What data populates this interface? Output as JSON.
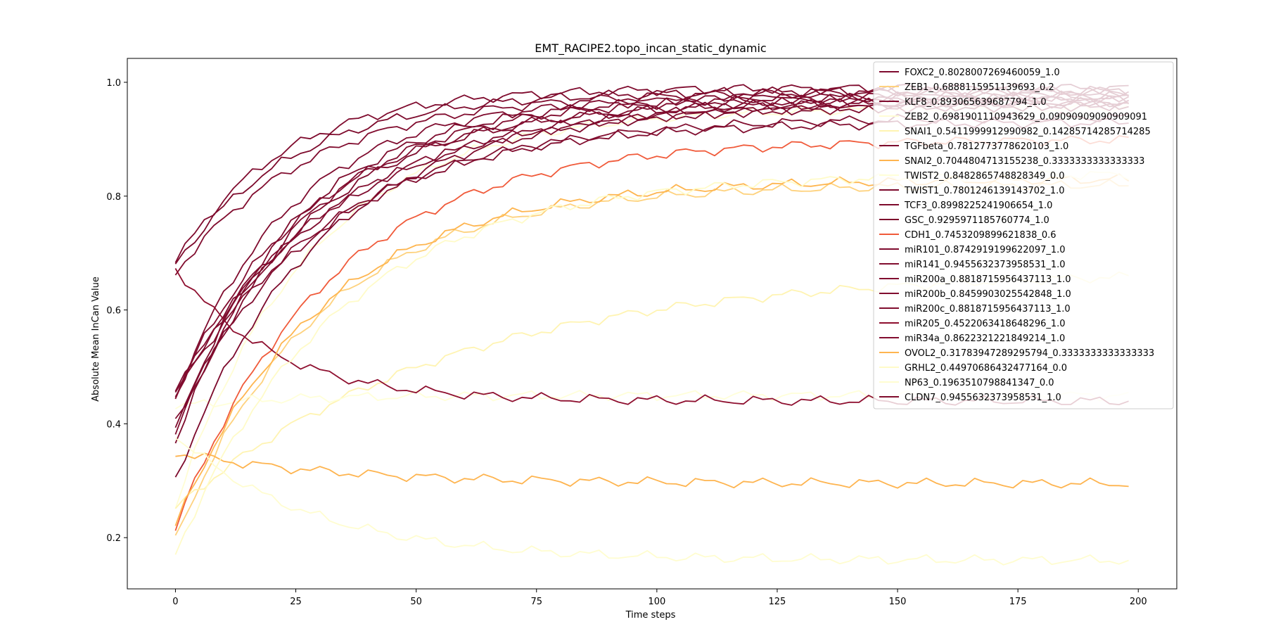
{
  "chart_data": {
    "type": "line",
    "title": "EMT_RACIPE2.topo_incan_static_dynamic",
    "xlabel": "Time steps",
    "ylabel": "Absolute Mean InCan Value",
    "xlim": [
      -10,
      208
    ],
    "ylim": [
      0.11,
      1.042
    ],
    "x_ticks": [
      0,
      25,
      50,
      75,
      100,
      125,
      150,
      175,
      200
    ],
    "y_ticks": [
      0.2,
      0.4,
      0.6,
      0.8,
      1.0
    ],
    "grid": false,
    "legend_position": "top-right",
    "x_range": [
      0,
      198
    ],
    "series": [
      {
        "name": "FOXC2_0.8028007269460059_1.0",
        "color": "#7f0b2e",
        "start": 0.683,
        "end": 0.99,
        "k": 0.045
      },
      {
        "name": "ZEB1_0.6888115951139693_0.2",
        "color": "#fed27e",
        "start": 0.195,
        "end": 0.82,
        "k": 0.034
      },
      {
        "name": "KLF8_0.893065639687794_1.0",
        "color": "#7f0b2e",
        "start": 0.445,
        "end": 0.975,
        "k": 0.042
      },
      {
        "name": "ZEB2_0.6981901110943629_0.09090909090909091",
        "color": "#fffdd4",
        "start": 0.255,
        "end": 0.955,
        "k": 0.036
      },
      {
        "name": "SNAI1_0.5411999912990982_0.14285714285714285",
        "color": "#fff4b2",
        "start": 0.25,
        "end": 0.67,
        "k": 0.018
      },
      {
        "name": "TGFbeta_0.7812773778620103_1.0",
        "color": "#7d0a2c",
        "start": 0.68,
        "end": 0.985,
        "k": 0.04
      },
      {
        "name": "SNAI2_0.7044804713155238_0.3333333333333333",
        "color": "#feb44f",
        "start": 0.35,
        "end": 0.295,
        "k": 0.03
      },
      {
        "name": "TWIST2_0.8482865748828349_0.0",
        "color": "#ffffd9",
        "start": 0.43,
        "end": 0.45,
        "k": 0.05
      },
      {
        "name": "TWIST1_0.7801246139143702_1.0",
        "color": "#7d0a2c",
        "start": 0.385,
        "end": 0.975,
        "k": 0.04
      },
      {
        "name": "TCF3_0.8998225241906654_1.0",
        "color": "#7d0a2c",
        "start": 0.3,
        "end": 0.96,
        "k": 0.034
      },
      {
        "name": "GSC_0.9295971185760774_1.0",
        "color": "#7d0a2c",
        "start": 0.37,
        "end": 0.965,
        "k": 0.038
      },
      {
        "name": "CDH1_0.7453209899621838_0.6",
        "color": "#f05a3a",
        "start": 0.215,
        "end": 0.9,
        "k": 0.032
      },
      {
        "name": "miR101_0.8742919199622097_1.0",
        "color": "#7f0b2e",
        "start": 0.455,
        "end": 0.97,
        "k": 0.03
      },
      {
        "name": "miR141_0.9455632373958531_1.0",
        "color": "#810d2f",
        "start": 0.665,
        "end": 0.985,
        "k": 0.035
      },
      {
        "name": "miR200a_0.8818715956437113_1.0",
        "color": "#810d2f",
        "start": 0.45,
        "end": 0.965,
        "k": 0.036
      },
      {
        "name": "miR200b_0.8459903025542848_1.0",
        "color": "#810d2f",
        "start": 0.45,
        "end": 0.94,
        "k": 0.03
      },
      {
        "name": "miR200c_0.8818715956437113_1.0",
        "color": "#810d2f",
        "start": 0.4,
        "end": 0.93,
        "k": 0.034
      },
      {
        "name": "miR205_0.4522063418648296_1.0",
        "color": "#8e0f2f",
        "start": 0.675,
        "end": 0.44,
        "k": 0.05
      },
      {
        "name": "miR34a_0.8622321221849214_1.0",
        "color": "#820d2f",
        "start": 0.45,
        "end": 0.96,
        "k": 0.032
      },
      {
        "name": "OVOL2_0.31783947289295794_0.3333333333333333",
        "color": "#feb54f",
        "start": 0.22,
        "end": 0.83,
        "k": 0.033
      },
      {
        "name": "GRHL2_0.44970686432477164_0.0",
        "color": "#fffbc8",
        "start": 0.17,
        "end": 0.84,
        "k": 0.03
      },
      {
        "name": "NP63_0.1963510798841347_0.0",
        "color": "#fffdd0",
        "start": 0.38,
        "end": 0.16,
        "k": 0.035
      },
      {
        "name": "CLDN7_0.9455632373958531_1.0",
        "color": "#800c2e",
        "start": 0.38,
        "end": 0.975,
        "k": 0.038
      }
    ]
  }
}
